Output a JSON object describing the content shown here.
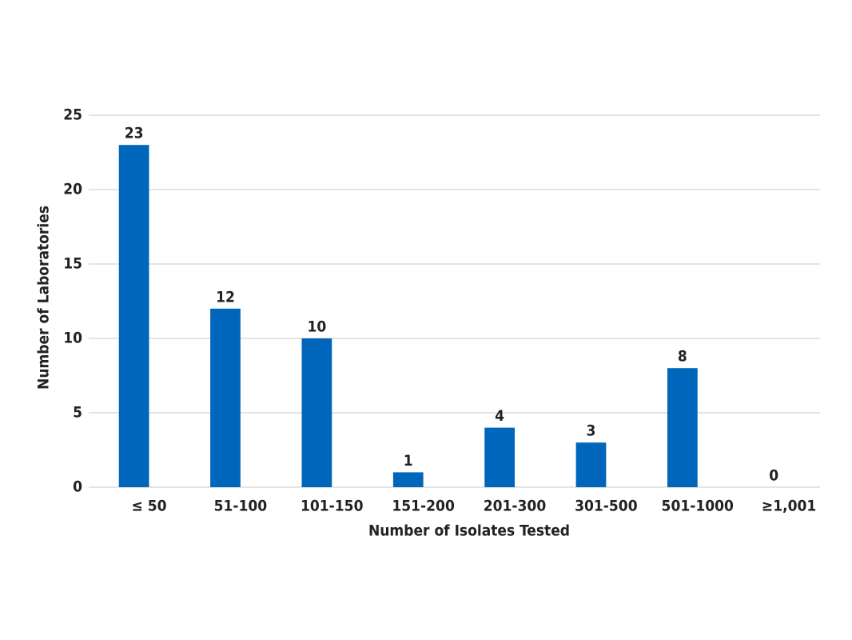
{
  "chart_data": {
    "type": "bar",
    "x_label": "Number of Isolates Tested",
    "y_label": "Number of Laboratories",
    "categories": [
      "≤ 50",
      "51-100",
      "101-150",
      "151-200",
      "201-300",
      "301-500",
      "501-1000",
      "≥1,001"
    ],
    "values": [
      23,
      12,
      10,
      1,
      4,
      3,
      8,
      0
    ],
    "color": "#0066bb",
    "ylim": [
      0,
      25
    ],
    "yticks": [
      0,
      5,
      10,
      15,
      20,
      25
    ],
    "grid": true
  }
}
